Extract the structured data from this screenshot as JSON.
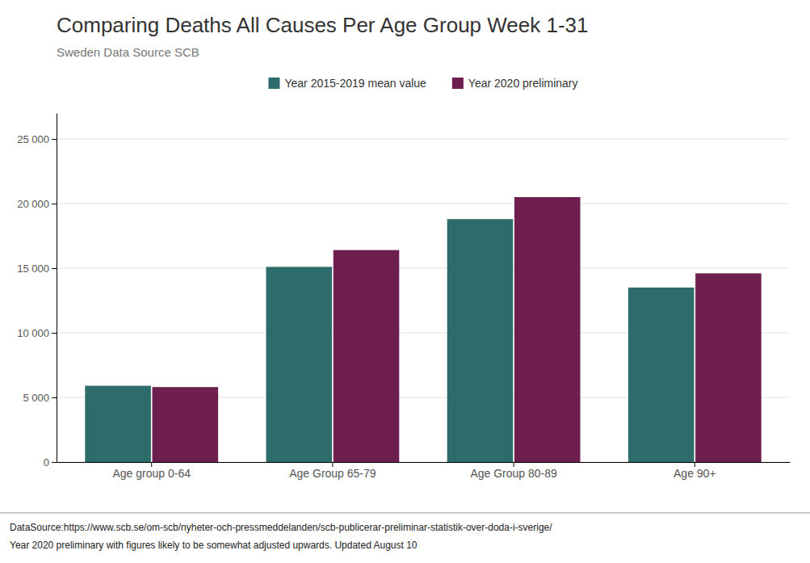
{
  "chart_data": {
    "type": "bar",
    "title": "Comparing Deaths All Causes Per Age Group Week 1-31",
    "subtitle": "Sweden Data Source SCB",
    "categories": [
      "Age group 0-64",
      "Age Group 65-79",
      "Age Group 80-89",
      "Age 90+"
    ],
    "series": [
      {
        "name": "Year 2015-2019 mean value",
        "color": "#2e6b6b",
        "values": [
          5900,
          15100,
          18800,
          13500
        ]
      },
      {
        "name": "Year 2020 preliminary",
        "color": "#6e1f4e",
        "values": [
          5800,
          16400,
          20500,
          14600
        ]
      }
    ],
    "ylim": [
      0,
      27000
    ],
    "yticks": [
      0,
      {
        "value": 5000,
        "label": "5 000"
      },
      {
        "value": 10000,
        "label": "10 000"
      },
      {
        "value": 15000,
        "label": "15 000"
      },
      {
        "value": 20000,
        "label": "20 000"
      },
      {
        "value": 25000,
        "label": "25 000"
      }
    ],
    "grid": true,
    "legend": "top",
    "annotations": [
      "DataSource:https://www.scb.se/om-scb/nyheter-och-pressmeddelanden/scb-publicerar-preliminar-statistik-over-doda-i-sverige/",
      "Year 2020 preliminary with figures likely to be somewhat adjusted upwards. Updated August 10"
    ]
  }
}
